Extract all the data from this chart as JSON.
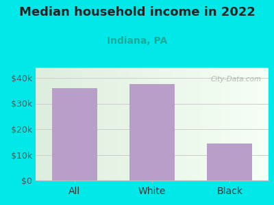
{
  "title": "Median household income in 2022",
  "subtitle": "Indiana, PA",
  "categories": [
    "All",
    "White",
    "Black"
  ],
  "values": [
    36000,
    37500,
    14500
  ],
  "bar_color": "#b89fc8",
  "background_color": "#00e8e8",
  "plot_bg_left": "#ddeedd",
  "plot_bg_right": "#f8fff8",
  "title_fontsize": 13,
  "subtitle_fontsize": 10,
  "tick_label_fontsize": 9,
  "yticks": [
    0,
    10000,
    20000,
    30000,
    40000
  ],
  "ytick_labels": [
    "$0",
    "$10k",
    "$20k",
    "$30k",
    "$40k"
  ],
  "ylim": [
    0,
    44000
  ],
  "watermark": "City-Data.com",
  "subtitle_color": "#1aaa99",
  "axis_line_color": "#bbbbbb",
  "title_color": "#222222"
}
